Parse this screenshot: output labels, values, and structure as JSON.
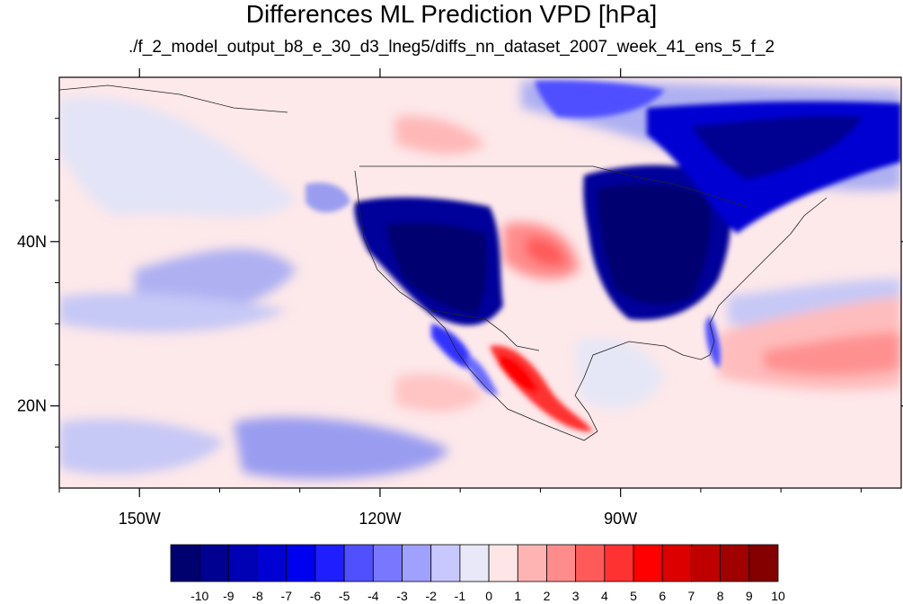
{
  "title": "Differences ML Prediction VPD [hPa]",
  "subtitle": "./f_2_model_output_b8_e_30_d3_lneg5/diffs_nn_dataset_2007_week_41_ens_5_f_2",
  "map": {
    "lon_range": [
      -160,
      -55
    ],
    "lat_range": [
      10,
      60
    ],
    "x_ticks": [
      {
        "value": -150,
        "label": "150W"
      },
      {
        "value": -120,
        "label": "120W"
      },
      {
        "value": -90,
        "label": "90W"
      }
    ],
    "y_ticks": [
      {
        "value": 40,
        "label": "40N"
      },
      {
        "value": 20,
        "label": "20N"
      }
    ]
  },
  "colorbar": {
    "levels": [
      "-10",
      "-9",
      "-8",
      "-7",
      "-6",
      "-5",
      "-4",
      "-3",
      "-2",
      "-1",
      "0",
      "1",
      "2",
      "3",
      "4",
      "5",
      "6",
      "7",
      "8",
      "9",
      "10"
    ],
    "colors": [
      "#00006e",
      "#000091",
      "#0000b4",
      "#0000d2",
      "#0000f0",
      "#1e1eff",
      "#5050ff",
      "#7878ff",
      "#a0a0ff",
      "#c8c8ff",
      "#e8e8f8",
      "#ffe6e6",
      "#ffb4b4",
      "#ff8c8c",
      "#ff5a5a",
      "#ff3232",
      "#ff0000",
      "#dc0000",
      "#be0000",
      "#a00000",
      "#820000"
    ]
  }
}
